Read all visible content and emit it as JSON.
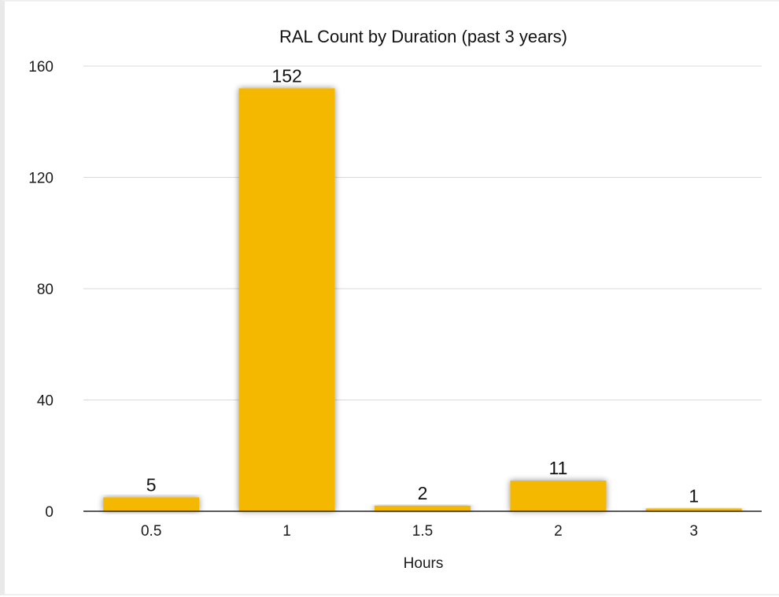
{
  "chart_data": {
    "type": "bar",
    "title": "RAL Count by Duration (past 3 years)",
    "xlabel": "Hours",
    "ylabel": "",
    "categories": [
      "0.5",
      "1",
      "1.5",
      "2",
      "3"
    ],
    "values": [
      5,
      152,
      2,
      11,
      1
    ],
    "data_labels": [
      "5",
      "152",
      "2",
      "11",
      "1"
    ],
    "ylim": [
      0,
      160
    ],
    "yticks": [
      0,
      40,
      80,
      120,
      160
    ],
    "ytick_labels": [
      "0",
      "40",
      "80",
      "120",
      "160"
    ],
    "grid": true,
    "legend": "none",
    "colors": {
      "bar": "#F5B800",
      "grid": "#d9d9d9",
      "axis": "#222222"
    }
  }
}
